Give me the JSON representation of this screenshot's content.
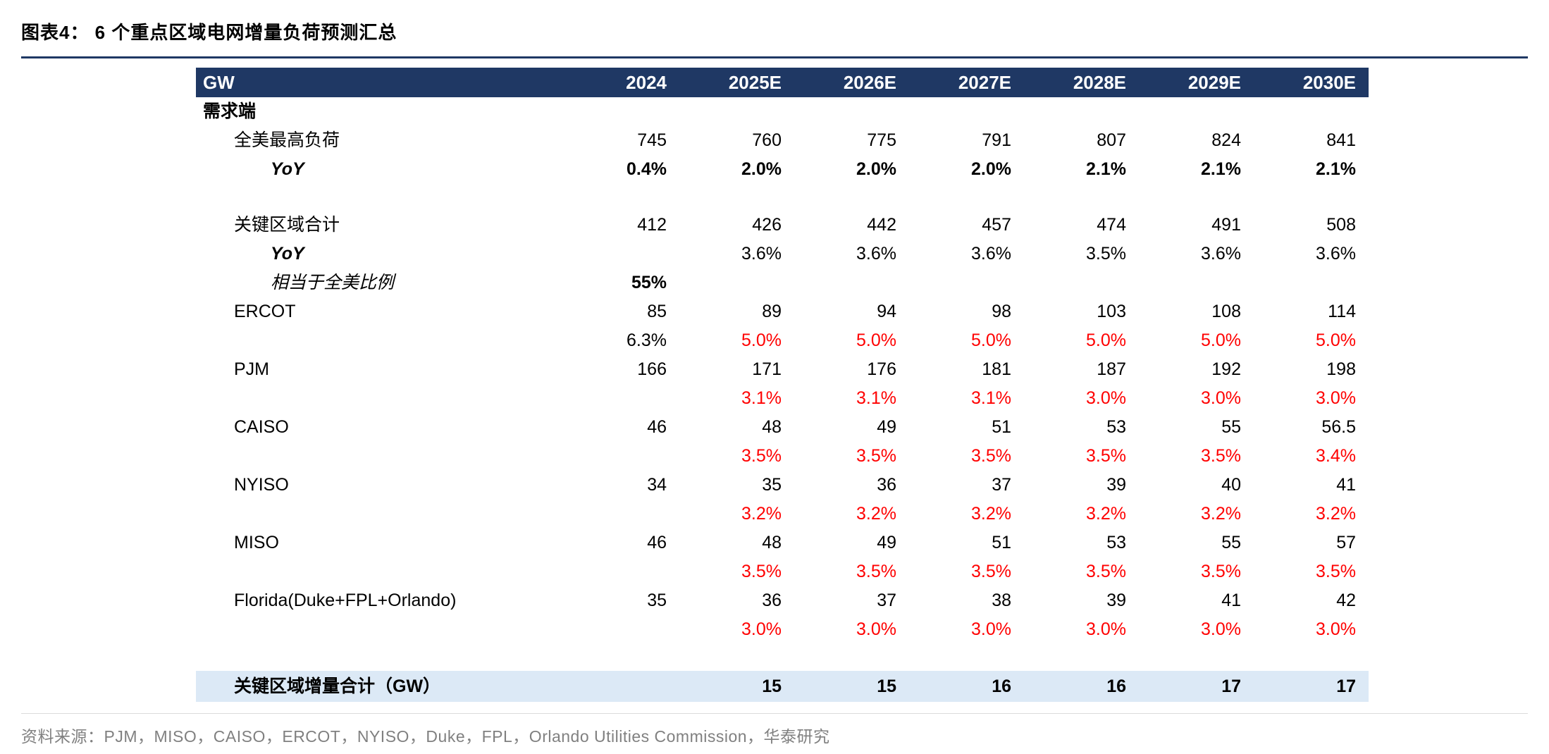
{
  "page": {
    "title": "图表4：  6 个重点区域电网增量负荷预测汇总",
    "source": "资料来源：PJM，MISO，CAISO，ERCOT，NYISO，Duke，FPL，Orlando Utilities Commission，华泰研究"
  },
  "colors": {
    "header_bg": "#1F3864",
    "accent_rule": "#1F3864",
    "total_row_bg": "#DCE9F6",
    "negative_red": "#FF0000",
    "source_gray": "#808080"
  },
  "chart_data": {
    "type": "table",
    "title": "6 个重点区域电网增量负荷预测汇总",
    "unit": "GW",
    "columns": [
      "GW",
      "2024",
      "2025E",
      "2026E",
      "2027E",
      "2028E",
      "2029E",
      "2030E"
    ],
    "rows": [
      {
        "label": "需求端",
        "label_style": "section",
        "values": [
          "",
          "",
          "",
          "",
          "",
          "",
          ""
        ]
      },
      {
        "label": "全美最高负荷",
        "label_style": "indent1",
        "values": [
          "745",
          "760",
          "775",
          "791",
          "807",
          "824",
          "841"
        ]
      },
      {
        "label": "YoY",
        "label_style": "yoy",
        "value_style": "bold",
        "values": [
          "0.4%",
          "2.0%",
          "2.0%",
          "2.0%",
          "2.1%",
          "2.1%",
          "2.1%"
        ]
      },
      {
        "label": "",
        "row_style": "spacer",
        "values": [
          "",
          "",
          "",
          "",
          "",
          "",
          ""
        ]
      },
      {
        "label": "关键区域合计",
        "label_style": "indent1",
        "values": [
          "412",
          "426",
          "442",
          "457",
          "474",
          "491",
          "508"
        ]
      },
      {
        "label": "YoY",
        "label_style": "yoy",
        "values": [
          "",
          "3.6%",
          "3.6%",
          "3.6%",
          "3.5%",
          "3.6%",
          "3.6%"
        ]
      },
      {
        "label": "相当于全美比例",
        "label_style": "italic2",
        "value_style": "bold",
        "values": [
          "55%",
          "",
          "",
          "",
          "",
          "",
          ""
        ]
      },
      {
        "label": "ERCOT",
        "label_style": "region",
        "values": [
          "85",
          "89",
          "94",
          "98",
          "103",
          "108",
          "114"
        ]
      },
      {
        "label": "",
        "value_style": "red",
        "overrides": {
          "0": "plain"
        },
        "values": [
          "6.3%",
          "5.0%",
          "5.0%",
          "5.0%",
          "5.0%",
          "5.0%",
          "5.0%"
        ]
      },
      {
        "label": "PJM",
        "label_style": "region",
        "values": [
          "166",
          "171",
          "176",
          "181",
          "187",
          "192",
          "198"
        ]
      },
      {
        "label": "",
        "value_style": "red",
        "values": [
          "",
          "3.1%",
          "3.1%",
          "3.1%",
          "3.0%",
          "3.0%",
          "3.0%"
        ]
      },
      {
        "label": "CAISO",
        "label_style": "region",
        "values": [
          "46",
          "48",
          "49",
          "51",
          "53",
          "55",
          "56.5"
        ]
      },
      {
        "label": "",
        "value_style": "red",
        "values": [
          "",
          "3.5%",
          "3.5%",
          "3.5%",
          "3.5%",
          "3.5%",
          "3.4%"
        ]
      },
      {
        "label": "NYISO",
        "label_style": "region",
        "values": [
          "34",
          "35",
          "36",
          "37",
          "39",
          "40",
          "41"
        ]
      },
      {
        "label": "",
        "value_style": "red",
        "values": [
          "",
          "3.2%",
          "3.2%",
          "3.2%",
          "3.2%",
          "3.2%",
          "3.2%"
        ]
      },
      {
        "label": "MISO",
        "label_style": "region",
        "values": [
          "46",
          "48",
          "49",
          "51",
          "53",
          "55",
          "57"
        ]
      },
      {
        "label": "",
        "value_style": "red",
        "values": [
          "",
          "3.5%",
          "3.5%",
          "3.5%",
          "3.5%",
          "3.5%",
          "3.5%"
        ]
      },
      {
        "label": "Florida(Duke+FPL+Orlando)",
        "label_style": "region",
        "values": [
          "35",
          "36",
          "37",
          "38",
          "39",
          "41",
          "42"
        ]
      },
      {
        "label": "",
        "value_style": "red",
        "values": [
          "",
          "3.0%",
          "3.0%",
          "3.0%",
          "3.0%",
          "3.0%",
          "3.0%"
        ]
      },
      {
        "label": "",
        "row_style": "spacer",
        "values": [
          "",
          "",
          "",
          "",
          "",
          "",
          ""
        ]
      },
      {
        "label": "关键区域增量合计（GW）",
        "row_style": "total",
        "label_style": "total",
        "value_style": "bold",
        "values": [
          "",
          "15",
          "15",
          "16",
          "16",
          "17",
          "17"
        ]
      }
    ]
  }
}
